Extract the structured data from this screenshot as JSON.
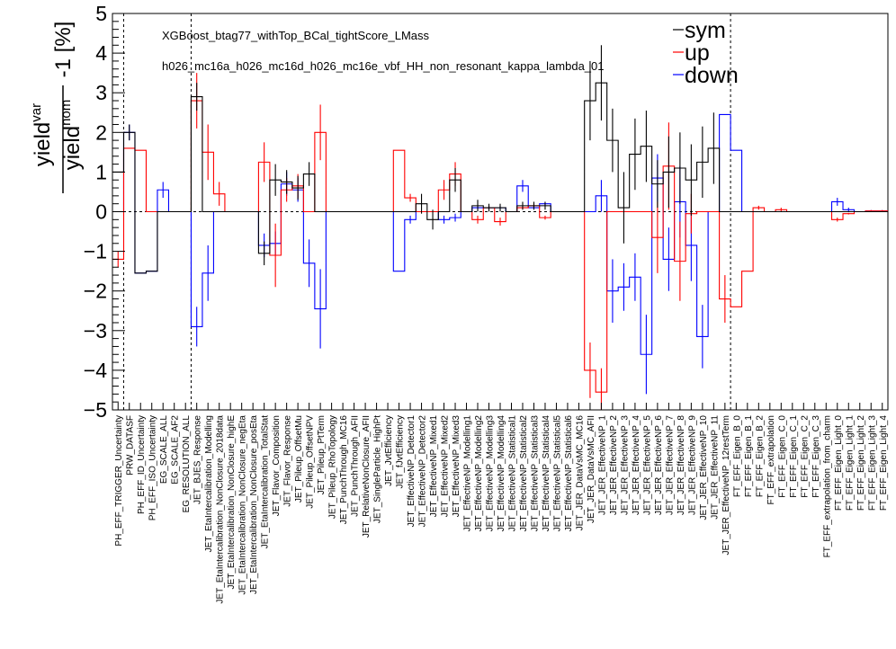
{
  "chart_data": {
    "type": "step-histogram",
    "title": "XGBoost_btag77_withTop_BCal_tightScore_LMass",
    "subtitle": "h026_mc16a_h026_mc16d_h026_mc16e_vbf_HH_non_resonant_kappa_lambda_01",
    "ylabel": {
      "num_base": "yield",
      "num_sup": "var",
      "den_base": "yield",
      "den_sup": "nom",
      "suffix": "-1 [%]"
    },
    "ylim": [
      -5,
      5
    ],
    "yticks": [
      "−5",
      "−4",
      "−3",
      "−2",
      "−1",
      "0",
      "1",
      "2",
      "3",
      "4",
      "5"
    ],
    "categories": [
      "PH_EFF_TRIGGER_Uncertainty",
      "PRW_DATASF",
      "PH_EFF_ID_Uncertainty",
      "PH_EFF_ISO_Uncertainty",
      "EG_SCALE_ALL",
      "EG_SCALE_AF2",
      "EG_RESOLUTION_ALL",
      "JET_BJES_Response",
      "JET_EtaIntercalibration_Modelling",
      "JET_EtaIntercalibration_NonClosure_2018data",
      "JET_EtaIntercalibration_NonClosure_highE",
      "JET_EtaIntercalibration_NonClosure_negEta",
      "JET_EtaIntercalibration_NonClosure_posEta",
      "JET_EtaIntercalibration_TotalStat",
      "JET_Flavor_Composition",
      "JET_Flavor_Response",
      "JET_Pileup_OffsetMu",
      "JET_Pileup_OffsetNPV",
      "JET_Pileup_PtTerm",
      "JET_Pileup_RhoTopology",
      "JET_PunchThrough_MC16",
      "JET_PunchThrough_AFII",
      "JET_RelativeNonClosure_AFII",
      "JET_SingleParticle_HighPt",
      "JET_JvtEfficiency",
      "JET_fJvtEfficiency",
      "JET_EffectiveNP_Detector1",
      "JET_EffectiveNP_Detector2",
      "JET_EffectiveNP_Mixed1",
      "JET_EffectiveNP_Mixed2",
      "JET_EffectiveNP_Mixed3",
      "JET_EffectiveNP_Modelling1",
      "JET_EffectiveNP_Modelling2",
      "JET_EffectiveNP_Modelling3",
      "JET_EffectiveNP_Modelling4",
      "JET_EffectiveNP_Statistical1",
      "JET_EffectiveNP_Statistical2",
      "JET_EffectiveNP_Statistical3",
      "JET_EffectiveNP_Statistical4",
      "JET_EffectiveNP_Statistical5",
      "JET_EffectiveNP_Statistical6",
      "JET_JER_DataVsMC_MC16",
      "JET_JER_DataVsMC_AFII",
      "JET_JER_EffectiveNP_1",
      "JET_JER_EffectiveNP_2",
      "JET_JER_EffectiveNP_3",
      "JET_JER_EffectiveNP_4",
      "JET_JER_EffectiveNP_5",
      "JET_JER_EffectiveNP_6",
      "JET_JER_EffectiveNP_7",
      "JET_JER_EffectiveNP_8",
      "JET_JER_EffectiveNP_9",
      "JET_JER_EffectiveNP_10",
      "JET_JER_EffectiveNP_11",
      "JET_JER_EffectiveNP_12restTerm",
      "FT_EFF_Eigen_B_0",
      "FT_EFF_Eigen_B_1",
      "FT_EFF_Eigen_B_2",
      "FT_EFF_extrapolation",
      "FT_EFF_Eigen_C_0",
      "FT_EFF_Eigen_C_1",
      "FT_EFF_Eigen_C_2",
      "FT_EFF_Eigen_C_3",
      "FT_EFF_extrapolation_from_charm",
      "FT_EFF_Eigen_Light_0",
      "FT_EFF_Eigen_Light_1",
      "FT_EFF_Eigen_Light_2",
      "FT_EFF_Eigen_Light_3",
      "FT_EFF_Eigen_Light_4"
    ],
    "series": [
      {
        "name": "sym",
        "color": "#000000",
        "values": [
          1.0,
          2.0,
          -1.55,
          -1.5,
          0.0,
          0.0,
          0.0,
          2.9,
          0.0,
          0.0,
          0.0,
          0.0,
          0.0,
          -1.05,
          0.8,
          0.75,
          0.6,
          0.95,
          0.0,
          0.0,
          0.0,
          0.0,
          0.0,
          0.0,
          0.0,
          0.0,
          0.0,
          0.2,
          -0.2,
          0.0,
          0.8,
          0.0,
          0.15,
          0.1,
          0.1,
          0.0,
          0.15,
          0.15,
          0.15,
          0.0,
          0.0,
          0.0,
          2.8,
          3.25,
          1.8,
          0.1,
          1.45,
          1.65,
          0.7,
          1.0,
          1.1,
          0.8,
          1.25,
          1.6,
          0.0,
          0.0,
          0.0,
          0.0,
          0.0,
          0.0,
          0.0,
          0.0,
          0.0,
          0.0,
          0.0,
          0.0,
          0.0,
          0.0,
          0.0
        ],
        "errors": [
          0.0,
          0.2,
          0.0,
          0.0,
          0.0,
          0.0,
          0.0,
          0.35,
          0.0,
          0.0,
          0.0,
          0.0,
          0.0,
          0.3,
          0.4,
          0.3,
          0.3,
          0.3,
          0.0,
          0.0,
          0.0,
          0.0,
          0.0,
          0.0,
          0.0,
          0.0,
          0.0,
          0.25,
          0.25,
          0.0,
          0.3,
          0.0,
          0.15,
          0.1,
          0.1,
          0.0,
          0.1,
          0.1,
          0.1,
          0.0,
          0.0,
          0.0,
          1.0,
          0.95,
          0.8,
          0.9,
          0.9,
          0.9,
          0.6,
          0.9,
          0.9,
          0.9,
          0.9,
          0.9,
          0.0,
          0.0,
          0.0,
          0.0,
          0.0,
          0.0,
          0.0,
          0.0,
          0.0,
          0.0,
          0.0,
          0.0,
          0.0,
          0.0,
          0.0
        ]
      },
      {
        "name": "up",
        "color": "#ff0000",
        "values": [
          -1.2,
          1.6,
          1.55,
          0.0,
          0.0,
          0.0,
          0.0,
          2.8,
          1.5,
          0.45,
          0.0,
          0.0,
          0.0,
          1.25,
          -1.1,
          0.55,
          0.65,
          0.0,
          2.0,
          0.0,
          0.0,
          0.0,
          0.0,
          0.0,
          0.0,
          1.55,
          0.35,
          0.0,
          0.0,
          0.55,
          0.95,
          0.0,
          -0.2,
          0.1,
          -0.25,
          0.0,
          0.1,
          0.15,
          -0.15,
          0.0,
          0.0,
          0.0,
          -4.0,
          -4.55,
          0.0,
          0.0,
          0.0,
          0.0,
          -0.65,
          1.15,
          -1.25,
          -0.05,
          0.0,
          0.0,
          -2.2,
          -2.4,
          -1.5,
          0.1,
          0.0,
          0.05,
          0.0,
          0.0,
          0.0,
          0.0,
          -0.2,
          -0.05,
          0.0,
          0.02,
          0.02
        ],
        "errors": [
          0.2,
          0.0,
          0.0,
          0.0,
          0.0,
          0.0,
          0.0,
          0.7,
          0.7,
          0.3,
          0.0,
          0.0,
          0.0,
          0.5,
          0.8,
          0.3,
          0.3,
          0.0,
          0.7,
          0.0,
          0.0,
          0.0,
          0.0,
          0.0,
          0.0,
          0.0,
          0.1,
          0.0,
          0.0,
          0.25,
          0.3,
          0.0,
          0.1,
          0.05,
          0.1,
          0.0,
          0.05,
          0.05,
          0.05,
          0.0,
          0.0,
          0.0,
          0.7,
          0.6,
          0.0,
          0.0,
          0.0,
          0.0,
          0.9,
          1.1,
          1.0,
          0.5,
          0.0,
          0.0,
          0.6,
          0.0,
          0.0,
          0.05,
          0.0,
          0.05,
          0.0,
          0.0,
          0.0,
          0.0,
          0.05,
          0.02,
          0.0,
          0.02,
          0.02
        ]
      },
      {
        "name": "down",
        "color": "#0000ff",
        "values": [
          0.0,
          2.0,
          -1.55,
          -1.5,
          0.55,
          0.0,
          0.0,
          -2.9,
          -1.55,
          0.0,
          0.0,
          0.0,
          0.0,
          -0.85,
          -0.8,
          0.7,
          0.55,
          -1.3,
          -2.45,
          0.0,
          0.0,
          0.0,
          0.0,
          0.0,
          0.0,
          -1.5,
          -0.2,
          0.0,
          0.0,
          -0.2,
          -0.15,
          0.0,
          0.1,
          0.1,
          0.1,
          0.0,
          0.65,
          0.1,
          0.2,
          0.0,
          0.0,
          0.0,
          0.0,
          0.4,
          -2.0,
          -1.9,
          -1.65,
          -3.6,
          0.85,
          -1.2,
          0.25,
          -0.85,
          -3.15,
          0.0,
          2.45,
          1.55,
          0.0,
          0.0,
          0.0,
          0.0,
          0.0,
          0.0,
          0.0,
          0.0,
          0.25,
          0.05,
          0.0,
          0.02,
          0.02
        ],
        "errors": [
          0.0,
          0.2,
          0.0,
          0.0,
          0.2,
          0.0,
          0.0,
          0.5,
          0.7,
          0.0,
          0.0,
          0.0,
          0.0,
          0.3,
          0.3,
          0.3,
          0.3,
          0.6,
          1.0,
          0.0,
          0.0,
          0.0,
          0.0,
          0.0,
          0.0,
          0.0,
          0.1,
          0.0,
          0.0,
          0.1,
          0.1,
          0.0,
          0.05,
          0.05,
          0.05,
          0.0,
          0.15,
          0.05,
          0.05,
          0.0,
          0.0,
          0.0,
          0.0,
          0.4,
          0.8,
          0.6,
          0.6,
          1.0,
          0.6,
          0.8,
          0.9,
          0.9,
          0.8,
          0.0,
          0.0,
          0.0,
          0.0,
          0.0,
          0.0,
          0.0,
          0.0,
          0.0,
          0.0,
          0.0,
          0.1,
          0.05,
          0.0,
          0.02,
          0.02
        ]
      }
    ],
    "reference_lines": {
      "horizontal_y": 0,
      "vertical_after_category_index": [
        0,
        6,
        54
      ]
    },
    "legend": {
      "placement": "top-right",
      "entries": [
        "sym",
        "up",
        "down"
      ]
    }
  }
}
